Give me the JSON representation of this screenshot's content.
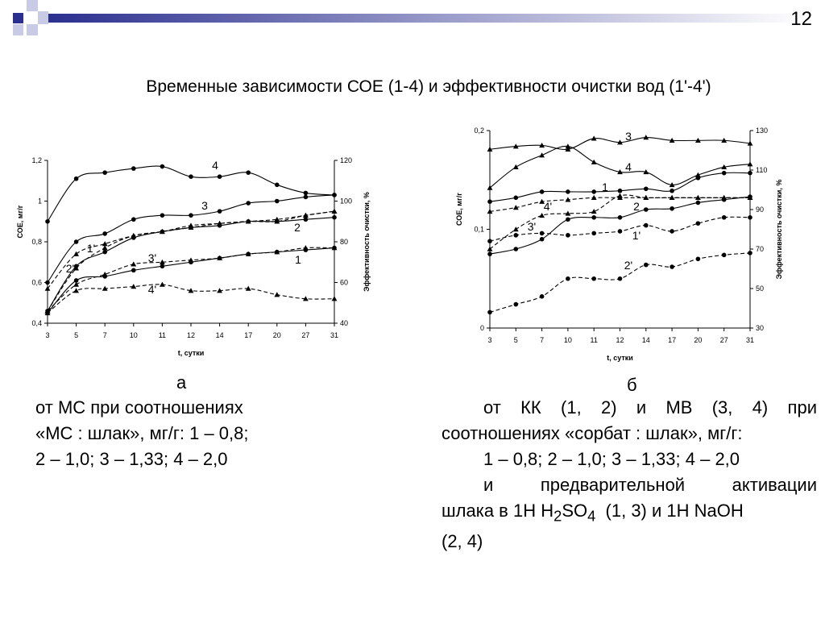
{
  "page_number": "12",
  "title": "Временные зависимости СОЕ (1-4) и эффективности очистки вод (1'-4')",
  "colors": {
    "deco_dark": "#2b2f8f",
    "deco_light": "#c9cbe6"
  },
  "panel_a": {
    "label": "а",
    "caption_lines": [
      "от МС при соотношениях",
      "«МС : шлак», мг/г: 1 – 0,8;",
      "2 – 1,0; 3 – 1,33; 4 – 2,0"
    ]
  },
  "panel_b": {
    "label": "б",
    "caption_1": "от КК (1, 2) и МВ (3, 4) при",
    "caption_2": "соотношениях «сорбат : шлак», мг/г:",
    "caption_3": "1 – 0,8; 2 – 1,0; 3 – 1,33; 4 – 2,0",
    "caption_4": "и предварительной активации",
    "caption_5_pre": "шлака в 1Н H",
    "caption_5_sub1": "2",
    "caption_5_mid": "SO",
    "caption_5_sub2": "4",
    "caption_5_post": "  (1, 3) и 1Н NaOH",
    "caption_6": "(2, 4)"
  },
  "chart_data": [
    {
      "type": "line",
      "categories": [
        "3",
        "5",
        "7",
        "10",
        "11",
        "12",
        "14",
        "17",
        "20",
        "27",
        "31"
      ],
      "xlabel": "t, сутки",
      "ylabel": "СОЕ, мг/г",
      "ylabel_right": "Эффективность очистки, %",
      "ylim": [
        0.4,
        1.2
      ],
      "yticks": [
        "0,4",
        "0,6",
        "0,8",
        "1",
        "1,2"
      ],
      "ylim_right": [
        40,
        120
      ],
      "yticks_right": [
        "40",
        "60",
        "80",
        "100",
        "120"
      ],
      "grid": false,
      "series": [
        {
          "name": "4",
          "axis": "left",
          "style": "solid",
          "marker": "circle",
          "values": [
            0.9,
            1.11,
            1.14,
            1.16,
            1.17,
            1.12,
            1.12,
            1.14,
            1.08,
            1.04,
            1.03
          ]
        },
        {
          "name": "3",
          "axis": "left",
          "style": "solid",
          "marker": "circle",
          "values": [
            0.6,
            0.8,
            0.84,
            0.91,
            0.93,
            0.93,
            0.95,
            0.99,
            1.0,
            1.02,
            1.03
          ]
        },
        {
          "name": "2",
          "axis": "left",
          "style": "solid",
          "marker": "circle",
          "values": [
            0.46,
            0.68,
            0.75,
            0.82,
            0.85,
            0.87,
            0.88,
            0.9,
            0.9,
            0.91,
            0.92
          ]
        },
        {
          "name": "1",
          "axis": "left",
          "style": "solid",
          "marker": "circle",
          "values": [
            0.45,
            0.61,
            0.63,
            0.66,
            0.68,
            0.7,
            0.72,
            0.74,
            0.75,
            0.76,
            0.77
          ]
        },
        {
          "name": "1'",
          "axis": "right",
          "style": "dashed",
          "marker": "triangle",
          "values": [
            57,
            74,
            79,
            83,
            85,
            88,
            89,
            90,
            90,
            93,
            95
          ]
        },
        {
          "name": "2'",
          "axis": "right",
          "style": "dashed",
          "marker": "triangle",
          "values": [
            46,
            67,
            77,
            83,
            85,
            87,
            89,
            90,
            91,
            93,
            95
          ]
        },
        {
          "name": "3'",
          "axis": "right",
          "style": "dashed",
          "marker": "triangle",
          "values": [
            46,
            59,
            64,
            69,
            70,
            71,
            72,
            74,
            75,
            77,
            77
          ]
        },
        {
          "name": "4'",
          "axis": "right",
          "style": "dashed",
          "marker": "triangle",
          "values": [
            45,
            56,
            57,
            58,
            59,
            56,
            56,
            57,
            54,
            52,
            52
          ]
        }
      ]
    },
    {
      "type": "line",
      "categories": [
        "3",
        "5",
        "7",
        "10",
        "11",
        "12",
        "14",
        "17",
        "20",
        "27",
        "31"
      ],
      "xlabel": "t, сутки",
      "ylabel": "СОЕ, мг/г",
      "ylabel_right": "Эффективность очистки, %",
      "ylim": [
        0,
        0.2
      ],
      "yticks": [
        "0",
        "0,1",
        "0,2"
      ],
      "ylim_right": [
        30,
        130
      ],
      "yticks_right": [
        "30",
        "50",
        "70",
        "90",
        "110",
        "130"
      ],
      "grid": false,
      "series": [
        {
          "name": "3",
          "axis": "left",
          "style": "solid",
          "marker": "triangle",
          "values": [
            0.181,
            0.184,
            0.185,
            0.181,
            0.192,
            0.188,
            0.193,
            0.19,
            0.19,
            0.19,
            0.187
          ]
        },
        {
          "name": "4",
          "axis": "left",
          "style": "solid",
          "marker": "triangle",
          "values": [
            0.142,
            0.163,
            0.175,
            0.184,
            0.168,
            0.158,
            0.158,
            0.145,
            0.155,
            0.163,
            0.166
          ]
        },
        {
          "name": "1",
          "axis": "left",
          "style": "solid",
          "marker": "circle",
          "values": [
            0.128,
            0.132,
            0.138,
            0.138,
            0.138,
            0.139,
            0.141,
            0.139,
            0.152,
            0.157,
            0.157
          ]
        },
        {
          "name": "2",
          "axis": "left",
          "style": "solid",
          "marker": "circle",
          "values": [
            0.075,
            0.08,
            0.09,
            0.11,
            0.112,
            0.112,
            0.12,
            0.121,
            0.127,
            0.13,
            0.133
          ]
        },
        {
          "name": "1'",
          "axis": "right",
          "style": "dashed",
          "marker": "circle",
          "values": [
            74,
            77,
            78,
            77,
            78,
            79,
            82,
            79,
            83,
            86,
            86
          ]
        },
        {
          "name": "2'",
          "axis": "right",
          "style": "dashed",
          "marker": "circle",
          "values": [
            38,
            42,
            46,
            55,
            55,
            55,
            62,
            61,
            65,
            67,
            68
          ]
        },
        {
          "name": "3'",
          "axis": "right",
          "style": "dashed",
          "marker": "triangle",
          "values": [
            70,
            80,
            87,
            88,
            89,
            97,
            96,
            96,
            96,
            96,
            96
          ]
        },
        {
          "name": "4'",
          "axis": "right",
          "style": "dashed",
          "marker": "triangle",
          "values": [
            89,
            91,
            94,
            95,
            96,
            96,
            96,
            96,
            96,
            96,
            96
          ]
        }
      ]
    }
  ]
}
